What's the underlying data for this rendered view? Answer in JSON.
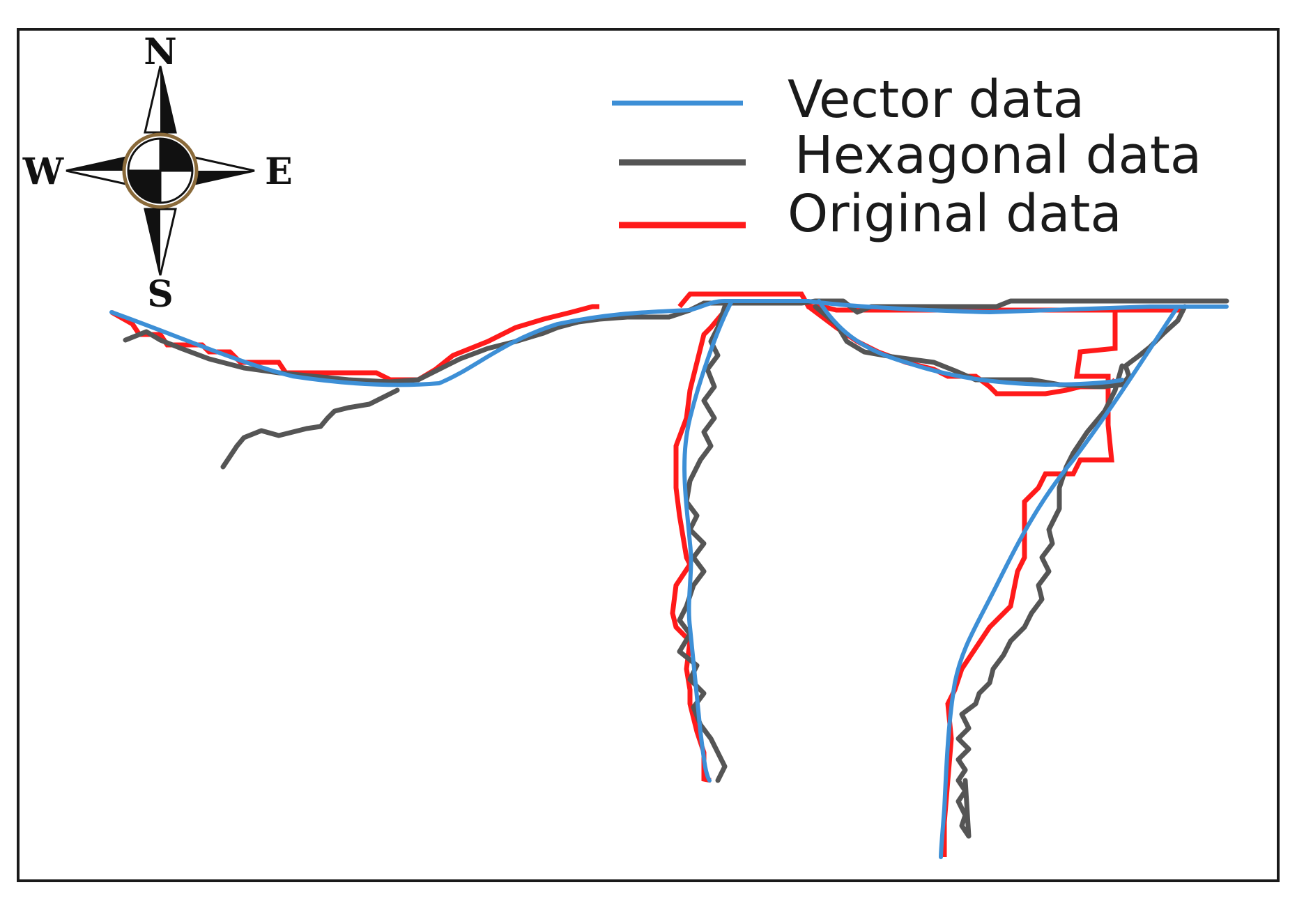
{
  "compass": {
    "north": "N",
    "south": "S",
    "east": "E",
    "west": "W",
    "icon": "compass-rose-icon"
  },
  "legend": {
    "items": [
      {
        "label": "Vector data",
        "color": "#3d8fd6"
      },
      {
        "label": "Hexagonal data",
        "color": "#555555"
      },
      {
        "label": "Original data",
        "color": "#ff1a1a"
      }
    ]
  },
  "colors": {
    "frame": "#1a1a1a",
    "background": "#ffffff",
    "vector": "#3d8fd6",
    "hexagonal": "#555555",
    "original": "#ff1a1a"
  }
}
